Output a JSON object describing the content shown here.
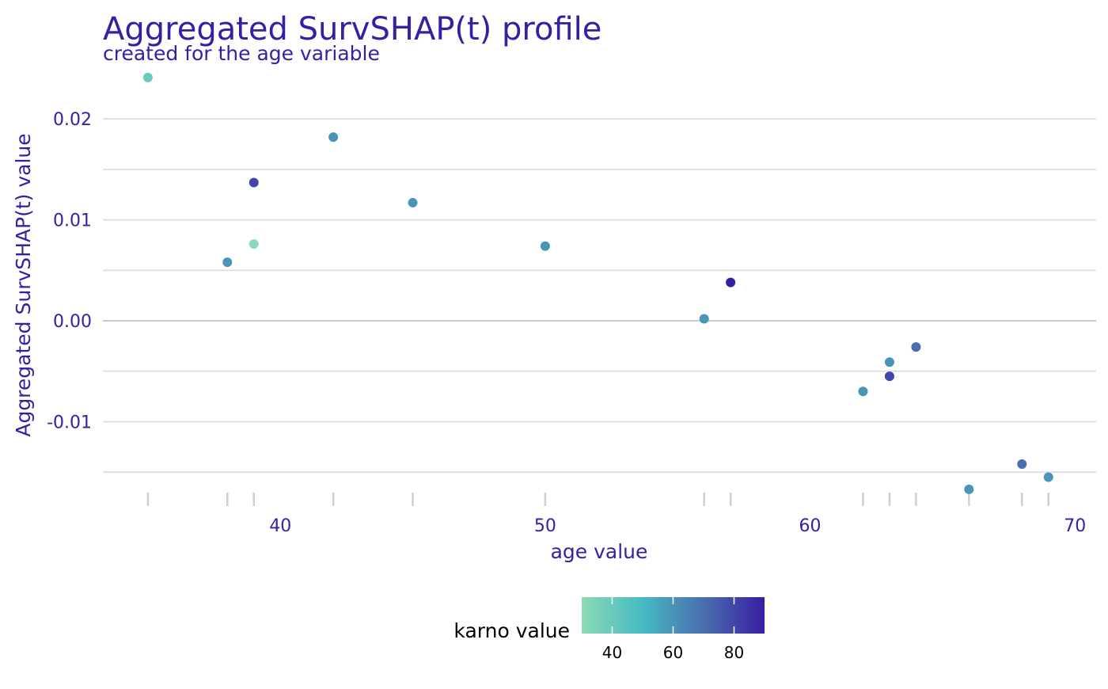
{
  "chart_data": {
    "type": "scatter",
    "title": "Aggregated SurvSHAP(t) profile",
    "subtitle": "created for the age variable",
    "xlabel": "age value",
    "ylabel": "Aggregated SurvSHAP(t) value",
    "xlim": [
      33.3,
      70.8
    ],
    "ylim": [
      -0.0153,
      0.0248
    ],
    "x_ticks": [
      40,
      50,
      60,
      70
    ],
    "x_tick_labels": [
      "40",
      "50",
      "60",
      "70"
    ],
    "y_ticks": [
      -0.01,
      0.0,
      0.01,
      0.02
    ],
    "y_tick_labels": [
      "-0.01",
      "0.00",
      "0.01",
      "0.02"
    ],
    "y_minor_gridlines": [
      -0.015,
      -0.005,
      0.005,
      0.015
    ],
    "zero_line": 0,
    "grid": true,
    "rug": true,
    "color_variable": "karno value",
    "color_scale": {
      "min": 30,
      "max": 90,
      "ticks": [
        40,
        60,
        80
      ],
      "tick_labels": [
        "40",
        "60",
        "80"
      ],
      "colors": [
        "#8bdab6",
        "#46bac2",
        "#4a6fae",
        "#371ea3"
      ]
    },
    "points": [
      {
        "x": 35,
        "y": 0.0241,
        "karno": 40
      },
      {
        "x": 38,
        "y": 0.0058,
        "karno": 60
      },
      {
        "x": 39,
        "y": 0.0137,
        "karno": 80
      },
      {
        "x": 39,
        "y": 0.0076,
        "karno": 30
      },
      {
        "x": 42,
        "y": 0.0182,
        "karno": 60
      },
      {
        "x": 45,
        "y": 0.0117,
        "karno": 60
      },
      {
        "x": 50,
        "y": 0.0074,
        "karno": 60
      },
      {
        "x": 56,
        "y": 0.0002,
        "karno": 60
      },
      {
        "x": 57,
        "y": 0.0038,
        "karno": 90
      },
      {
        "x": 62,
        "y": -0.007,
        "karno": 60
      },
      {
        "x": 63,
        "y": -0.0041,
        "karno": 60
      },
      {
        "x": 63,
        "y": -0.0055,
        "karno": 80
      },
      {
        "x": 64,
        "y": -0.0026,
        "karno": 70
      },
      {
        "x": 66,
        "y": -0.0167,
        "karno": 60
      },
      {
        "x": 68,
        "y": -0.0142,
        "karno": 70
      },
      {
        "x": 69,
        "y": -0.0155,
        "karno": 60
      }
    ]
  },
  "colors": {
    "text": "#371ea3",
    "grid": "#e0e0e6",
    "zero_line": "#c8c8d4",
    "rug": "#ceced9",
    "legend_text": "#000000"
  }
}
